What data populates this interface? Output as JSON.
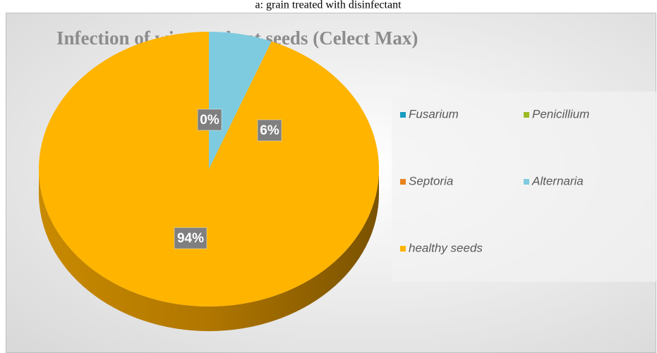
{
  "caption": "a: grain treated with disinfectant",
  "chart_data": {
    "type": "pie",
    "title": "Infection of winter wheat seeds (Celect Max)",
    "categories": [
      "Fusarium",
      "Penicillium",
      "Septoria",
      "Alternaria",
      "healthy seeds"
    ],
    "values": [
      0,
      0,
      0,
      6,
      94
    ],
    "value_labels": [
      "0%",
      null,
      null,
      "6%",
      "94%"
    ],
    "colors": [
      "#1a9cc0",
      "#9bbb24",
      "#e8821e",
      "#7ecbe0",
      "#ffb400"
    ],
    "legend": "right"
  }
}
